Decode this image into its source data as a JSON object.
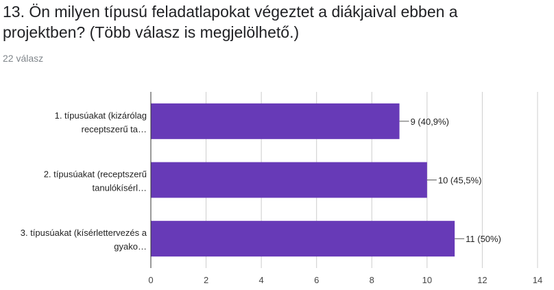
{
  "question": {
    "title": "13. Ön milyen típusú feladatlapokat végeztet a diákjaival ebben a projektben? (Több válasz is megjelölhető.)",
    "responses": "22 válasz"
  },
  "colors": {
    "bar": "#673ab7",
    "grid": "#cccccc",
    "axis": "#333333"
  },
  "chart_data": {
    "type": "bar",
    "orientation": "horizontal",
    "categories": [
      [
        "1. típusúakat (kizárólag",
        "receptszerű ta…"
      ],
      [
        "2. típusúakat (receptszerű",
        "tanulókísérl…"
      ],
      [
        "3. típusúakat (kísérlettervezés a",
        "gyako…"
      ]
    ],
    "values": [
      9,
      10,
      11
    ],
    "data_labels": [
      "9 (40,9%)",
      "10 (45,5%)",
      "11 (50%)"
    ],
    "xlim": [
      0,
      14
    ],
    "xticks": [
      0,
      2,
      4,
      6,
      8,
      10,
      12,
      14
    ],
    "grid": true,
    "legend": "none"
  }
}
